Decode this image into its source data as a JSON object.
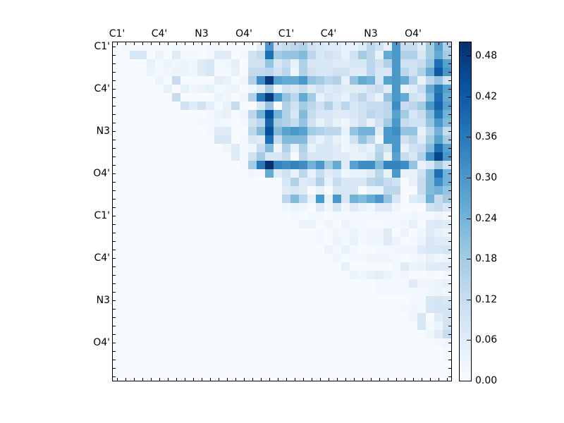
{
  "chart_data": {
    "type": "heatmap",
    "title": "",
    "colormap": "Blues",
    "vmin": 0.0,
    "vmax": 0.5,
    "rows": 40,
    "cols": 40,
    "x_tick_labels": [
      "C1'",
      "C4'",
      "N3",
      "O4'",
      "C1'",
      "C4'",
      "N3",
      "O4'"
    ],
    "x_tick_positions": [
      0,
      5,
      10,
      15,
      20,
      25,
      30,
      35
    ],
    "y_tick_labels": [
      "C1'",
      "C4'",
      "N3",
      "O4'",
      "C1'",
      "C4'",
      "N3",
      "O4'"
    ],
    "y_tick_positions": [
      0,
      5,
      10,
      15,
      20,
      25,
      30,
      35
    ],
    "colorbar_ticks": [
      "0.00",
      "0.06",
      "0.12",
      "0.18",
      "0.24",
      "0.30",
      "0.36",
      "0.42",
      "0.48"
    ],
    "colorbar_tick_values": [
      0.0,
      0.06,
      0.12,
      0.18,
      0.24,
      0.3,
      0.36,
      0.42,
      0.48
    ],
    "values_x100_rows": [
      "0 1 0 0 0 0 0 1 0 0 0 1 1 0 0 0 0 5 30 10 12 14 16 10 8 6 6 4 4 6 14 10 4 30 12 12 6 18 28 16",
      "0 0 8 8 0 3 0 6 1 1 0 1 6 6 0 1 10 13 38 18 20 20 22 14 8 10 8 4 10 18 14 4 26 30 16 16 8 18 26 18",
      "0 0 0 0 4 1 3 2 3 2 6 8 1 2 5 0 10 10 20 8 12 4 16 8 8 8 6 6 8 8 14 10 16 30 10 10 12 20 38 28",
      "0 0 0 0 3 1 2 3 3 2 6 8 1 1 4 0 13 13 14 10 14 2 16 10 8 8 10 10 6 6 14 8 8 30 14 10 16 26 42 30",
      "0 0 0 0 0 3 0 12 0 0 0 0 5 4 0 2 16 32 48 28 26 26 30 20 18 14 16 4 20 26 24 8 28 30 26 16 4 14 20 10",
      "0 0 0 0 0 0 4 0 4 2 3 4 1 2 3 0 2 6 18 3 10 8 12 6 10 6 8 6 6 6 10 12 6 30 4 6 12 26 36 28",
      "0 0 0 0 0 0 0 12 0 0 0 0 3 2 0 2 16 36 48 30 20 14 26 18 4 8 6 4 10 14 8 4 20 30 26 10 8 22 38 26",
      "0 0 0 0 0 0 0 0 10 6 10 5 1 4 12 0 0 8 20 0 16 10 18 14 10 16 8 14 8 10 12 12 14 32 12 14 18 30 40 28",
      "0 0 0 0 0 0 0 0 0 0 0 1 3 4 0 2 14 24 44 24 16 8 22 12 8 8 6 6 8 10 14 12 14 28 18 8 12 22 36 24",
      "0 0 0 0 0 0 0 0 0 0 1 1 2 1 0 1 10 14 40 18 16 12 20 10 4 8 4 2 6 10 4 10 18 30 12 10 10 20 30 22",
      "0 0 0 0 0 0 0 0 0 0 0 1 6 6 0 0 14 22 44 22 28 30 28 18 16 14 14 4 20 24 24 6 30 32 20 20 4 14 24 12",
      "0 0 0 0 0 0 0 0 0 0 0 0 8 8 0 1 8 6 38 12 22 22 22 8 4 8 4 2 10 20 14 2 30 30 10 14 6 18 28 18",
      "0 0 0 0 0 0 0 0 0 0 0 0 0 2 6 1 2 12 22 2 16 4 16 4 8 8 6 2 4 6 4 14 10 30 4 10 12 22 38 28",
      "0 0 0 0 0 0 0 0 0 0 0 0 0 0 6 1 10 18 8 8 12 0 14 8 8 8 6 6 4 4 6 16 4 28 12 8 16 32 46 30",
      "0 0 0 0 0 0 0 0 0 0 0 0 0 0 0 1 18 36 50 34 32 34 32 24 30 18 26 6 28 32 32 22 34 34 32 20 4 8 18 10",
      "0 0 0 0 0 0 0 0 0 0 0 0 0 0 0 0 2 1 26 6 10 4 14 4 12 6 8 2 4 4 6 14 4 30 4 4 10 22 38 24",
      "0 0 0 0 0 0 0 0 0 0 0 0 0 0 0 0 0 0 0 0 8 16 6 8 16 4 12 8 8 8 14 16 12 10 0 4 12 22 32 24",
      "0 0 0 0 0 0 0 0 0 0 0 0 0 0 0 0 0 0 0 0 6 8 6 0 4 0 8 8 8 0 4 4 14 14 0 0 12 22 24 20",
      "0 0 0 0 0 0 0 0 0 0 0 0 0 0 0 0 0 0 0 0 14 22 14 4 30 4 30 8 24 22 26 30 20 8 0 6 8 24 12 18",
      "0 0 0 0 0 0 0 0 0 0 0 0 0 0 0 0 0 0 0 0 2 3 2 0 6 2 8 2 6 4 2 6 6 2 0 0 0 10 12 8",
      "0 0 0 0 0 0 0 0 0 0 0 0 0 0 0 0 0 0 0 0 0 1 0 1 1 0 1 1 1 1 1 1 1 1 1 2 1 1 3 1",
      "0 0 0 0 0 0 0 0 0 0 0 0 0 0 0 0 0 0 0 0 0 0 3 3 0 2 0 3 1 1 0 0 1 1 2 4 0 6 7 6",
      "0 0 0 0 0 0 0 0 0 0 0 0 0 0 0 0 0 0 0 0 0 0 0 0 1 0 2 1 3 1 2 2 6 0 3 0 2 6 4 3",
      "0 0 0 0 0 0 0 0 0 0 0 0 0 0 0 0 0 0 0 0 0 0 0 0 1 0 3 1 4 1 2 2 6 3 0 1 3 8 6 6",
      "0 0 0 0 0 0 0 0 0 0 0 0 0 0 0 0 0 0 0 0 0 0 0 0 0 3 1 4 1 0 0 1 1 2 2 2 6 8 8 9",
      "0 0 0 0 0 0 0 0 0 0 0 0 0 0 0 0 0 0 0 0 0 0 0 0 0 0 2 0 1 1 2 2 2 1 0 1 2 4 2 3",
      "0 0 0 0 0 0 0 0 0 0 0 0 0 0 0 0 0 0 0 0 0 0 0 0 0 0 0 4 0 0 0 0 0 1 6 3 4 6 6 6",
      "0 0 0 0 0 0 0 0 0 0 0 0 0 0 0 0 0 0 0 0 0 0 0 0 0 0 0 0 3 2 4 5 3 1 2 0 0 1 0 1",
      "0 0 0 0 0 0 0 0 0 0 0 0 0 0 0 0 0 0 0 0 0 0 0 0 0 0 0 0 0 0 0 1 1 1 1 6 2 2 3 4",
      "0 0 0 0 0 0 0 0 0 0 0 0 0 0 0 0 0 0 0 0 0 0 0 0 0 0 0 0 0 0 0 1 1 1 1 1 1 2 3 2",
      "0 0 0 0 0 0 0 0 0 0 0 0 0 0 0 0 0 0 0 0 0 0 0 0 0 0 0 0 0 0 0 0 0 0 0 1 1 8 9 8",
      "0 0 0 0 0 0 0 0 0 0 0 0 0 0 0 0 0 0 0 0 0 0 0 0 0 0 0 0 0 0 0 0 0 0 1 2 1 8 9 9",
      "0 0 0 0 0 0 0 0 0 0 0 0 0 0 0 0 0 0 0 0 0 0 0 0 0 0 0 0 0 0 0 0 0 0 0 2 8 0 6 9",
      "0 0 0 0 0 0 0 0 0 0 0 0 0 0 0 0 0 0 0 0 0 0 0 0 0 0 0 0 0 0 0 0 0 0 0 0 8 1 3 9",
      "0 0 0 0 0 0 0 0 0 0 0 0 0 0 0 0 0 0 0 0 0 0 0 0 0 0 0 0 0 0 0 0 0 0 0 0 0 2 6 12",
      "0 0 0 0 0 0 0 0 0 0 0 0 0 0 0 0 0 0 0 0 0 0 0 0 0 0 0 0 0 0 0 0 0 0 0 0 0 0 1 2",
      "0 0 0 0 0 0 0 0 0 0 0 0 0 0 0 0 0 0 0 0 0 0 0 0 0 0 0 0 0 0 0 0 0 0 0 0 0 0 0 1",
      "0 0 0 0 0 0 0 0 0 0 0 0 0 0 0 0 0 0 0 0 0 0 0 0 0 0 0 0 0 0 0 0 0 0 0 0 0 0 0 1",
      "0 0 0 0 0 0 0 0 0 0 0 0 0 0 0 0 0 0 0 0 0 0 0 0 0 0 0 0 0 0 0 0 0 0 0 0 0 0 0 0",
      "0 0 0 0 0 0 0 0 0 0 0 0 0 0 0 0 0 0 0 0 0 0 0 0 0 0 0 0 0 0 0 0 0 0 0 0 0 0 0 0"
    ],
    "grid": false,
    "legend_position": "right colorbar"
  }
}
